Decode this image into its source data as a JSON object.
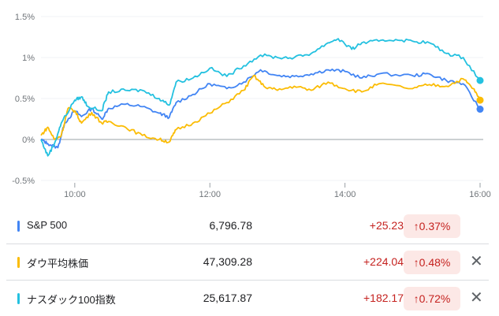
{
  "chart_data": {
    "type": "line",
    "ylim": [
      -0.5,
      1.5
    ],
    "xlim": [
      9.5,
      16
    ],
    "yticks": [
      "1.5%",
      "1%",
      "0.5%",
      "0%",
      "-0.5%"
    ],
    "ytick_values": [
      1.5,
      1,
      0.5,
      0,
      -0.5
    ],
    "xticks": [
      "10:00",
      "12:00",
      "14:00",
      "16:00"
    ],
    "xtick_values": [
      10,
      12,
      14,
      16
    ],
    "grid": true,
    "baseline": 0,
    "series": [
      {
        "name": "S&P 500",
        "color": "#4285f4",
        "x": [
          9.5,
          9.6,
          9.75,
          9.85,
          10.0,
          10.1,
          10.25,
          10.4,
          10.5,
          10.75,
          11.0,
          11.25,
          11.4,
          11.5,
          11.75,
          12.0,
          12.25,
          12.5,
          12.75,
          13.0,
          13.25,
          13.5,
          13.75,
          14.0,
          14.25,
          14.5,
          15.0,
          15.25,
          15.5,
          15.75,
          16.0
        ],
        "y": [
          0,
          -0.05,
          -0.1,
          0.2,
          0.35,
          0.28,
          0.38,
          0.25,
          0.38,
          0.43,
          0.4,
          0.32,
          0.27,
          0.45,
          0.55,
          0.68,
          0.62,
          0.7,
          0.85,
          0.78,
          0.77,
          0.8,
          0.85,
          0.83,
          0.75,
          0.8,
          0.78,
          0.8,
          0.72,
          0.68,
          0.37
        ]
      },
      {
        "name": "ダウ平均株価",
        "color": "#fbbc04",
        "x": [
          9.5,
          9.6,
          9.7,
          9.8,
          9.9,
          10.0,
          10.1,
          10.25,
          10.4,
          10.5,
          10.75,
          11.0,
          11.25,
          11.4,
          11.5,
          11.75,
          12.0,
          12.25,
          12.5,
          12.65,
          12.8,
          13.0,
          13.25,
          13.5,
          13.75,
          14.0,
          14.25,
          14.5,
          15.0,
          15.25,
          15.5,
          15.75,
          15.9,
          16.0
        ],
        "y": [
          0.05,
          0.15,
          0.0,
          0.05,
          0.38,
          0.35,
          0.2,
          0.33,
          0.2,
          0.22,
          0.15,
          0.05,
          0.0,
          -0.03,
          0.12,
          0.2,
          0.32,
          0.45,
          0.6,
          0.78,
          0.65,
          0.6,
          0.65,
          0.6,
          0.7,
          0.62,
          0.58,
          0.68,
          0.62,
          0.67,
          0.65,
          0.74,
          0.62,
          0.48
        ]
      },
      {
        "name": "ナスダック100指数",
        "color": "#24c1e0",
        "x": [
          9.5,
          9.6,
          9.7,
          9.8,
          10.0,
          10.1,
          10.2,
          10.4,
          10.5,
          10.75,
          11.0,
          11.25,
          11.4,
          11.5,
          11.75,
          12.0,
          12.25,
          12.5,
          12.75,
          13.0,
          13.25,
          13.5,
          13.75,
          13.9,
          14.1,
          14.25,
          14.5,
          14.75,
          15.0,
          15.25,
          15.5,
          15.75,
          16.0
        ],
        "y": [
          0,
          -0.2,
          -0.05,
          0.2,
          0.48,
          0.52,
          0.4,
          0.35,
          0.58,
          0.6,
          0.6,
          0.5,
          0.42,
          0.7,
          0.75,
          0.87,
          0.77,
          0.9,
          1.03,
          1.0,
          1.0,
          1.05,
          1.18,
          1.23,
          1.1,
          1.18,
          1.2,
          1.22,
          1.2,
          1.18,
          1.05,
          1.0,
          0.72
        ]
      }
    ]
  },
  "table": {
    "rows": [
      {
        "name": "S&P 500",
        "color": "#4285f4",
        "price": "6,796.78",
        "change": "+25.23",
        "percent": "↑0.37%",
        "removable": false
      },
      {
        "name": "ダウ平均株価",
        "color": "#fbbc04",
        "price": "47,309.28",
        "change": "+224.04",
        "percent": "↑0.48%",
        "removable": true
      },
      {
        "name": "ナスダック100指数",
        "color": "#24c1e0",
        "price": "25,617.87",
        "change": "+182.17",
        "percent": "↑0.72%",
        "removable": true
      }
    ],
    "close_icon": "✕"
  }
}
